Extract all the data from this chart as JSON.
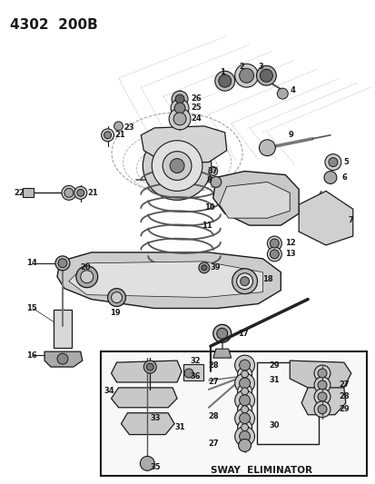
{
  "title": "4302  200B",
  "bg": "#ffffff",
  "lc": "#1a1a1a",
  "figsize": [
    4.14,
    5.33
  ],
  "dpi": 100,
  "gray_fill": "#c8c8c8",
  "light_fill": "#e8e8e8",
  "dark_fill": "#888888",
  "mid_fill": "#aaaaaa"
}
